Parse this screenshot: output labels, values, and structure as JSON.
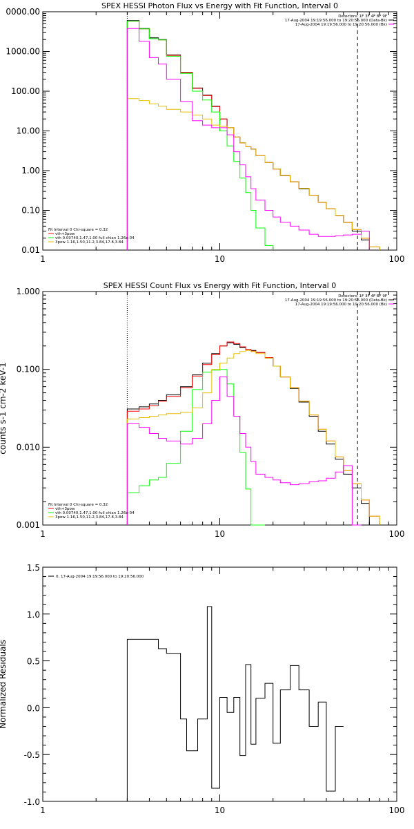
{
  "colors": {
    "black": "#000000",
    "red": "#ff0000",
    "green": "#00ff00",
    "yellow": "#e6c000",
    "magenta": "#ff00ff"
  },
  "chart_data": [
    {
      "type": "line",
      "title": "SPEX HESSI Photon Flux vs Energy with Fit Function, Interval 0",
      "xlabel": "",
      "ylabel": "",
      "xscale": "log",
      "yscale": "log",
      "xlim": [
        1,
        100
      ],
      "ylim": [
        0.01,
        10000
      ],
      "x_tick_labels": [
        "1",
        "10",
        "100"
      ],
      "y_tick_labels": [
        "0.01",
        "0.10",
        "1.00",
        "10.00",
        "100.00",
        "1000.00",
        "0000.00"
      ],
      "legend_top": [
        "Detectors: 1F 3F 4F 8F 9F",
        "17-Aug-2004 19:19:56.000 to 19:20:56.000 (Data-Bk)",
        "17-Aug-2004 19:19:56.000 to 19:20:56.000 (Bk)"
      ],
      "legend_bottom": [
        "Fit Interval 0   Chi-square = 0.32",
        "vth+3pow",
        "vth 0.00740,1.47,1.00  full chian 1.26e-04",
        "3pow 1.16,1.50,11.2,3.84,17.8,3.84"
      ],
      "vlines": [
        {
          "x": 3,
          "style": "dotted"
        },
        {
          "x": 60,
          "style": "dashed"
        }
      ],
      "edges": [
        3,
        3.5,
        4,
        4.5,
        5,
        6,
        7,
        8,
        9,
        10,
        11,
        12,
        13,
        14,
        15,
        16,
        18,
        20,
        22,
        25,
        28,
        32,
        36,
        40,
        45,
        50,
        56,
        63,
        70,
        80,
        100
      ],
      "series": [
        {
          "name": "Data-Bk",
          "color": "black",
          "values": [
            6000,
            3800,
            2200,
            2000,
            820,
            300,
            120,
            80,
            42,
            20,
            12,
            7,
            5,
            4,
            3.5,
            2.4,
            1.6,
            1.1,
            0.75,
            0.52,
            0.35,
            0.24,
            0.16,
            0.11,
            0.075,
            0.05,
            0.03,
            0.018,
            null,
            null
          ]
        },
        {
          "name": "vth+3pow",
          "color": "red",
          "values": [
            5800,
            3700,
            2100,
            1950,
            800,
            295,
            118,
            78,
            41,
            20,
            12,
            7,
            5,
            4,
            3.5,
            2.4,
            1.6,
            1.1,
            0.76,
            0.52,
            0.36,
            0.24,
            0.16,
            0.11,
            0.075,
            0.05,
            0.033,
            0.02,
            0.012,
            null
          ]
        },
        {
          "name": "vth",
          "color": "green",
          "values": [
            5800,
            3700,
            2100,
            1950,
            760,
            280,
            100,
            60,
            30,
            10,
            4.2,
            1.7,
            0.65,
            0.28,
            0.1,
            0.036,
            0.013,
            null,
            null,
            null,
            null,
            null,
            null,
            null,
            null,
            null,
            null,
            null,
            null,
            null
          ]
        },
        {
          "name": "3pow",
          "color": "yellow",
          "values": [
            65,
            58,
            48,
            42,
            35,
            30,
            25,
            20,
            14,
            13,
            12,
            7,
            5,
            4,
            3.5,
            2.4,
            1.6,
            1.1,
            0.76,
            0.52,
            0.36,
            0.24,
            0.16,
            0.11,
            0.075,
            0.05,
            0.033,
            0.02,
            0.012,
            null
          ]
        },
        {
          "name": "Bk",
          "color": "magenta",
          "values": [
            3800,
            1800,
            700,
            480,
            200,
            55,
            18,
            14,
            12,
            12,
            8,
            3,
            1.4,
            0.7,
            0.35,
            0.18,
            0.1,
            0.068,
            0.05,
            0.04,
            0.032,
            0.025,
            0.022,
            0.022,
            0.023,
            0.024,
            0.025,
            0.03,
            null,
            null
          ]
        }
      ]
    },
    {
      "type": "line",
      "title": "SPEX HESSI Count Flux vs Energy with Fit Function, Interval 0",
      "xlabel": "",
      "ylabel": "counts s-1 cm-2 keV-1",
      "xscale": "log",
      "yscale": "log",
      "xlim": [
        1,
        100
      ],
      "ylim": [
        0.001,
        1.0
      ],
      "x_tick_labels": [
        "1",
        "10",
        "100"
      ],
      "y_tick_labels": [
        "0.001",
        "0.010",
        "0.100",
        "1.000"
      ],
      "legend_top": [
        "Detectors: 1F 3F 4F 8F 9F",
        "17-Aug-2004 19:19:56.000 to 19:20:56.000 (Data-Bk)",
        "17-Aug-2004 19:19:56.000 to 19:20:56.000 (Bk)"
      ],
      "legend_bottom": [
        "Fit Interval 0   Chi-square = 0.32",
        "vth+3pow",
        "vth 0.00740,1.47,1.00  full chian 1.26e-04",
        "3pow 1.16,1.50,11.2,3.84,17.8,3.84"
      ],
      "vlines": [
        {
          "x": 3,
          "style": "dotted"
        },
        {
          "x": 60,
          "style": "dashed"
        }
      ],
      "edges": [
        3,
        3.5,
        4,
        4.5,
        5,
        6,
        7,
        8,
        9,
        10,
        11,
        12,
        13,
        14,
        15,
        16,
        18,
        20,
        22,
        25,
        28,
        32,
        36,
        40,
        45,
        50,
        56,
        63,
        70,
        80,
        100
      ],
      "series": [
        {
          "name": "Data-Bk",
          "color": "black",
          "values": [
            0.031,
            0.033,
            0.036,
            0.04,
            0.047,
            0.06,
            0.085,
            0.12,
            0.16,
            0.2,
            0.22,
            0.21,
            0.19,
            0.18,
            0.175,
            0.165,
            0.14,
            0.11,
            0.08,
            0.057,
            0.038,
            0.025,
            0.016,
            0.011,
            0.007,
            0.0045,
            0.003,
            0.0019,
            null,
            null
          ]
        },
        {
          "name": "vth+3pow",
          "color": "red",
          "values": [
            0.029,
            0.031,
            0.034,
            0.039,
            0.045,
            0.058,
            0.082,
            0.115,
            0.155,
            0.2,
            0.225,
            0.215,
            0.195,
            0.18,
            0.172,
            0.165,
            0.142,
            0.11,
            0.08,
            0.058,
            0.039,
            0.026,
            0.017,
            0.012,
            0.0075,
            0.005,
            0.0034,
            0.0021,
            0.0013,
            null
          ]
        },
        {
          "name": "vth",
          "color": "green",
          "values": [
            0.0026,
            0.0032,
            0.0038,
            0.0041,
            0.0062,
            0.016,
            0.055,
            0.092,
            0.098,
            0.1,
            0.065,
            0.025,
            0.0086,
            0.0029,
            0.0009,
            0.0003,
            null,
            null,
            null,
            null,
            null,
            null,
            null,
            null,
            null,
            null,
            null,
            null,
            null,
            null
          ]
        },
        {
          "name": "3pow",
          "color": "yellow",
          "values": [
            0.023,
            0.024,
            0.025,
            0.026,
            0.027,
            0.028,
            0.032,
            0.05,
            0.1,
            0.12,
            0.14,
            0.16,
            0.17,
            0.175,
            0.17,
            0.16,
            0.14,
            0.11,
            0.08,
            0.058,
            0.039,
            0.026,
            0.017,
            0.012,
            0.0075,
            0.005,
            0.0034,
            0.0021,
            0.0013,
            null
          ]
        },
        {
          "name": "Bk",
          "color": "magenta",
          "values": [
            0.02,
            0.018,
            0.015,
            0.013,
            0.012,
            0.011,
            0.013,
            0.02,
            0.04,
            0.08,
            0.045,
            0.025,
            0.015,
            0.01,
            0.0065,
            0.0045,
            0.0041,
            0.0038,
            0.0035,
            0.0033,
            0.0034,
            0.0036,
            0.0037,
            0.004,
            0.0048,
            0.0058,
            0.0008,
            null,
            null,
            null
          ]
        }
      ]
    },
    {
      "type": "line",
      "title": "",
      "xlabel": "",
      "ylabel": "Normalized Residuals",
      "xscale": "log",
      "yscale": "linear",
      "xlim": [
        1,
        100
      ],
      "ylim": [
        -1.0,
        1.5
      ],
      "x_tick_labels": [
        "1",
        "10",
        "100"
      ],
      "y_tick_labels": [
        "-1.0",
        "-0.5",
        "0.0",
        "0.5",
        "1.0",
        "1.5"
      ],
      "legend_top": [
        "0, 17-Aug-2004 19:19:56.000 to 19:20:56.000"
      ],
      "edges": [
        3,
        4,
        4.5,
        5,
        6,
        6.5,
        7.5,
        8.5,
        9,
        10,
        11,
        12,
        13,
        14,
        15,
        16,
        18,
        20,
        22,
        25,
        28,
        32,
        36,
        40,
        45,
        50,
        56,
        60
      ],
      "series": [
        {
          "name": "0",
          "color": "black",
          "values": [
            0.73,
            0.73,
            0.63,
            0.58,
            -0.12,
            -0.46,
            -0.12,
            1.08,
            -0.86,
            0.11,
            -0.05,
            0.11,
            -0.51,
            0.46,
            -0.39,
            0.1,
            0.26,
            -0.38,
            0.19,
            0.45,
            0.19,
            -0.2,
            0.06,
            -0.89,
            -0.2,
            null,
            null
          ]
        }
      ]
    }
  ]
}
